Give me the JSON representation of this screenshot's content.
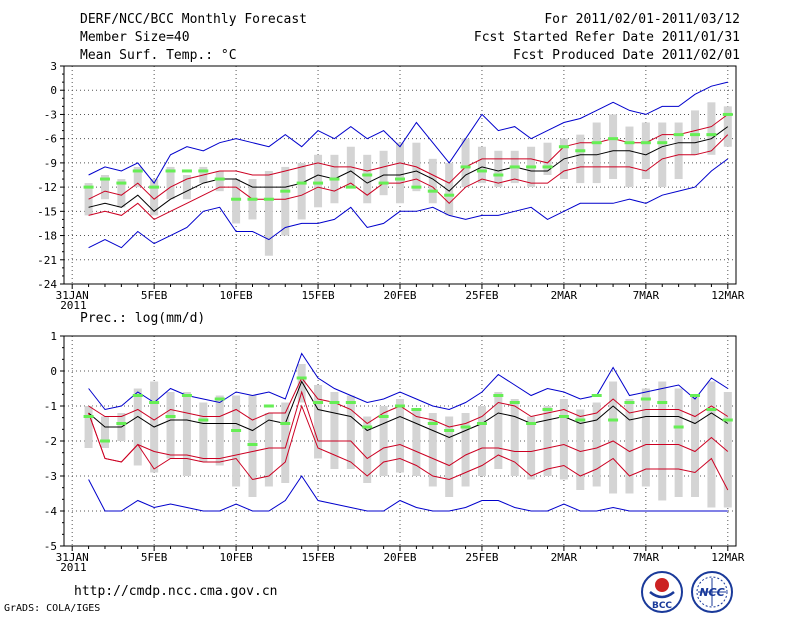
{
  "header": {
    "title": "DERF/NCC/BCC Monthly Forecast",
    "member_size": "Member Size=40",
    "variable": "Mean Surf. Temp.: °C",
    "period": "For 2011/02/01-2011/03/12",
    "start_date": "Fcst Started Refer Date 2011/01/31",
    "produced_date": "Fcst Produced Date 2011/02/01"
  },
  "footer": {
    "url": "http://cmdp.ncc.cma.gov.cn",
    "grads": "GrADS: COLA/IGES",
    "logo1_text": "BCC",
    "logo2_text": "NCC"
  },
  "colors": {
    "envelope": "#0000cc",
    "spread": "#cc0022",
    "mean": "#000000",
    "box": "#d4d4d4",
    "marker": "#66ee55",
    "grid": "#555555"
  },
  "chart_data": [
    {
      "type": "line",
      "panel": "temperature",
      "title": "Mean Surf. Temp.: °C",
      "x_labels": [
        "31JAN",
        "5FEB",
        "10FEB",
        "15FEB",
        "20FEB",
        "25FEB",
        "2MAR",
        "7MAR",
        "12MAR"
      ],
      "x_label_day": [
        0,
        5,
        10,
        15,
        20,
        25,
        30,
        35,
        40
      ],
      "x_year_label": "2011",
      "ylim": [
        -24,
        3
      ],
      "y_ticks": [
        "3",
        "0",
        "-3",
        "-6",
        "-9",
        "-12",
        "-15",
        "-18",
        "-21",
        "-24"
      ],
      "y_tick_values": [
        3,
        0,
        -3,
        -6,
        -9,
        -12,
        -15,
        -18,
        -21,
        -24
      ],
      "days": [
        1,
        2,
        3,
        4,
        5,
        6,
        7,
        8,
        9,
        10,
        11,
        12,
        13,
        14,
        15,
        16,
        17,
        18,
        19,
        20,
        21,
        22,
        23,
        24,
        25,
        26,
        27,
        28,
        29,
        30,
        31,
        32,
        33,
        34,
        35,
        36,
        37,
        38,
        39,
        40
      ],
      "series": [
        {
          "name": "max",
          "color": "#0000cc",
          "values": [
            -10.5,
            -9.5,
            -10,
            -9,
            -11.5,
            -8,
            -7,
            -7.5,
            -6.5,
            -6,
            -6.5,
            -7,
            -5.5,
            -7,
            -5,
            -6,
            -4.5,
            -6,
            -5,
            -7,
            -4,
            -6.5,
            -9,
            -6,
            -3,
            -5,
            -4.5,
            -6,
            -5,
            -4,
            -3.5,
            -2.5,
            -1.5,
            -2.5,
            -3,
            -2,
            -2,
            -0.5,
            0.5,
            1
          ]
        },
        {
          "name": "upper",
          "color": "#cc0022",
          "values": [
            -13.5,
            -12.5,
            -13,
            -11.5,
            -13.5,
            -12,
            -11,
            -10.5,
            -10,
            -10,
            -10.5,
            -10.5,
            -10,
            -9.5,
            -9,
            -9.5,
            -9.5,
            -10,
            -9.5,
            -9,
            -9.5,
            -10.5,
            -11.5,
            -9.5,
            -8.5,
            -8.5,
            -8.5,
            -8.5,
            -9,
            -7,
            -6.5,
            -6.5,
            -6,
            -6.5,
            -6.5,
            -5.5,
            -5.5,
            -5,
            -4.5,
            -3
          ]
        },
        {
          "name": "mean",
          "color": "#000000",
          "values": [
            -14.5,
            -14,
            -14.5,
            -13,
            -15,
            -13.5,
            -12.5,
            -11.5,
            -11,
            -11,
            -12,
            -12,
            -12,
            -11.5,
            -10.5,
            -11,
            -10,
            -11.5,
            -10.5,
            -10.5,
            -10,
            -11,
            -12.5,
            -10.5,
            -9.5,
            -10,
            -9.5,
            -10,
            -10,
            -8.5,
            -8,
            -8,
            -7.5,
            -7.5,
            -8,
            -7,
            -6.5,
            -6.5,
            -6,
            -4.5
          ]
        },
        {
          "name": "lower",
          "color": "#cc0022",
          "values": [
            -15.5,
            -15,
            -15.5,
            -14,
            -16,
            -15,
            -14,
            -13,
            -12,
            -12,
            -13.5,
            -13.5,
            -13.5,
            -13,
            -12,
            -12.5,
            -11.5,
            -13,
            -11.5,
            -11.5,
            -11,
            -12,
            -14,
            -12,
            -11,
            -11.5,
            -11,
            -11.5,
            -11.5,
            -10,
            -9.5,
            -9.5,
            -9.5,
            -9.5,
            -10,
            -8.5,
            -8,
            -8,
            -7.5,
            -5.5
          ]
        },
        {
          "name": "min",
          "color": "#0000cc",
          "values": [
            -19.5,
            -18.5,
            -19.5,
            -17.5,
            -19,
            -18,
            -17,
            -15,
            -14.5,
            -17.5,
            -17.5,
            -18.5,
            -17,
            -16.5,
            -16.5,
            -16,
            -14.5,
            -17,
            -16.5,
            -15,
            -15,
            -14.5,
            -15.5,
            -16,
            -15.5,
            -15.5,
            -15,
            -14.5,
            -16,
            -15,
            -14,
            -14,
            -14,
            -13.5,
            -14,
            -13,
            -12.5,
            -12,
            -10,
            -8.5
          ]
        }
      ],
      "boxes": [
        [
          -15.5,
          -11.5
        ],
        [
          -13.5,
          -10.5
        ],
        [
          -14.5,
          -11
        ],
        [
          -12,
          -9.5
        ],
        [
          -15.5,
          -11
        ],
        [
          -13.5,
          -9.5
        ],
        [
          -13.5,
          -10.5
        ],
        [
          -11.5,
          -9.5
        ],
        [
          -12.5,
          -10
        ],
        [
          -16.5,
          -11
        ],
        [
          -16,
          -11
        ],
        [
          -20.5,
          -10
        ],
        [
          -18,
          -9.5
        ],
        [
          -16,
          -9
        ],
        [
          -14.5,
          -8
        ],
        [
          -14,
          -8
        ],
        [
          -12,
          -7
        ],
        [
          -14,
          -8
        ],
        [
          -13,
          -7.5
        ],
        [
          -14,
          -6.5
        ],
        [
          -12.5,
          -6.5
        ],
        [
          -14,
          -8.5
        ],
        [
          -15.5,
          -9
        ],
        [
          -12,
          -6
        ],
        [
          -11.5,
          -7
        ],
        [
          -12,
          -7.5
        ],
        [
          -11.5,
          -7.5
        ],
        [
          -12,
          -7
        ],
        [
          -10.5,
          -6.5
        ],
        [
          -11,
          -6
        ],
        [
          -11.5,
          -5.5
        ],
        [
          -11.5,
          -4
        ],
        [
          -11,
          -3
        ],
        [
          -12,
          -4.5
        ],
        [
          -11,
          -4
        ],
        [
          -12,
          -4
        ],
        [
          -11,
          -4
        ],
        [
          -8,
          -2.5
        ],
        [
          -8,
          -1.5
        ],
        [
          -7,
          -2
        ]
      ],
      "markers": [
        -12,
        -11,
        -11.5,
        -10,
        -12,
        -10,
        -10,
        -10,
        -11,
        -13.5,
        -13.5,
        -13.5,
        -12.5,
        -11.5,
        -11.5,
        -11,
        -12,
        -10.5,
        -11.5,
        -11,
        -12,
        -12.5,
        -13,
        -9.5,
        -10,
        -10.5,
        -9.5,
        -9.5,
        -9.5,
        -7,
        -7.5,
        -6.5,
        -6,
        -6.5,
        -6.5,
        -6.5,
        -5.5,
        -5.5,
        -5.5,
        -3
      ]
    },
    {
      "type": "line",
      "panel": "precipitation",
      "title": "Prec.: log(mm/d)",
      "x_labels": [
        "31JAN",
        "5FEB",
        "10FEB",
        "15FEB",
        "20FEB",
        "25FEB",
        "2MAR",
        "7MAR",
        "12MAR"
      ],
      "x_label_day": [
        0,
        5,
        10,
        15,
        20,
        25,
        30,
        35,
        40
      ],
      "x_year_label": "2011",
      "ylim": [
        -5,
        1
      ],
      "y_ticks": [
        "1",
        "0",
        "-1",
        "-2",
        "-3",
        "-4",
        "-5"
      ],
      "y_tick_values": [
        1,
        0,
        -1,
        -2,
        -3,
        -4,
        -5
      ],
      "days": [
        1,
        2,
        3,
        4,
        5,
        6,
        7,
        8,
        9,
        10,
        11,
        12,
        13,
        14,
        15,
        16,
        17,
        18,
        19,
        20,
        21,
        22,
        23,
        24,
        25,
        26,
        27,
        28,
        29,
        30,
        31,
        32,
        33,
        34,
        35,
        36,
        37,
        38,
        39,
        40
      ],
      "series": [
        {
          "name": "max",
          "color": "#0000cc",
          "values": [
            -0.5,
            -1.1,
            -1,
            -0.6,
            -0.9,
            -0.5,
            -0.7,
            -0.8,
            -0.9,
            -0.6,
            -0.7,
            -0.6,
            -0.8,
            0.5,
            -0.2,
            -0.5,
            -0.7,
            -0.9,
            -0.8,
            -0.6,
            -0.8,
            -1,
            -1.1,
            -0.9,
            -0.6,
            -0.1,
            -0.4,
            -0.7,
            -0.5,
            -0.6,
            -0.8,
            -0.7,
            0.1,
            -0.7,
            -0.6,
            -0.5,
            -0.4,
            -0.8,
            -0.2,
            -0.5
          ]
        },
        {
          "name": "upper",
          "color": "#cc0022",
          "values": [
            -1,
            -1.3,
            -1.3,
            -1.1,
            -1.4,
            -1.1,
            -1.2,
            -1.3,
            -1.3,
            -1.1,
            -1.4,
            -1.2,
            -1.2,
            -0.2,
            -0.8,
            -0.9,
            -1.1,
            -1.5,
            -1.2,
            -1,
            -1.3,
            -1.4,
            -1.6,
            -1.5,
            -1.3,
            -0.9,
            -1,
            -1.3,
            -1.2,
            -1.1,
            -1.3,
            -1.2,
            -0.8,
            -1.2,
            -1.1,
            -1.1,
            -1.1,
            -1.3,
            -1,
            -1.3
          ]
        },
        {
          "name": "mean",
          "color": "#000000",
          "values": [
            -1.2,
            -1.6,
            -1.6,
            -1.3,
            -1.6,
            -1.4,
            -1.4,
            -1.5,
            -1.5,
            -1.5,
            -1.7,
            -1.4,
            -1.5,
            -0.3,
            -1.1,
            -1.2,
            -1.3,
            -1.7,
            -1.5,
            -1.3,
            -1.5,
            -1.7,
            -1.9,
            -1.7,
            -1.5,
            -1.2,
            -1.3,
            -1.5,
            -1.4,
            -1.3,
            -1.5,
            -1.4,
            -1,
            -1.4,
            -1.3,
            -1.3,
            -1.3,
            -1.5,
            -1.2,
            -1.5
          ]
        },
        {
          "name": "lower",
          "color": "#cc0022",
          "values": [
            -1.2,
            -2.5,
            -2.6,
            -2.1,
            -2.3,
            -2.4,
            -2.4,
            -2.5,
            -2.5,
            -2.4,
            -2.3,
            -2.2,
            -2.2,
            -0.6,
            -2,
            -2,
            -2,
            -2.5,
            -2.2,
            -2.1,
            -2.3,
            -2.5,
            -2.7,
            -2.4,
            -2.2,
            -2.2,
            -2.3,
            -2.3,
            -2.2,
            -2.1,
            -2.3,
            -2.2,
            -2,
            -2.3,
            -2.1,
            -2.1,
            -2.1,
            -2.3,
            -1.9,
            -2.3
          ]
        },
        {
          "name": "lower2",
          "color": "#cc0022",
          "values": [
            -1.2,
            -2.5,
            -2.6,
            -2.1,
            -2.8,
            -2.5,
            -2.5,
            -2.6,
            -2.6,
            -2.5,
            -3.1,
            -3,
            -2.6,
            -1,
            -2.2,
            -2.4,
            -2.6,
            -3,
            -2.6,
            -2.5,
            -2.7,
            -3,
            -3.1,
            -2.9,
            -2.7,
            -2.4,
            -2.6,
            -3,
            -2.8,
            -2.7,
            -3,
            -2.8,
            -2.5,
            -3,
            -2.8,
            -2.8,
            -2.8,
            -2.9,
            -2.5,
            -3.4
          ]
        },
        {
          "name": "min",
          "color": "#0000cc",
          "values": [
            -3.1,
            -4,
            -4,
            -3.7,
            -3.9,
            -3.8,
            -3.9,
            -4,
            -4,
            -3.8,
            -4,
            -4,
            -3.7,
            -3,
            -3.7,
            -3.8,
            -3.9,
            -4,
            -4,
            -3.7,
            -3.9,
            -4,
            -4,
            -3.9,
            -3.7,
            -3.7,
            -3.9,
            -4,
            -4,
            -3.8,
            -4,
            -4,
            -3.9,
            -4,
            -4,
            -4,
            -4,
            -4,
            -4,
            -4
          ]
        }
      ],
      "boxes": [
        [
          -2.2,
          -1
        ],
        [
          -2.2,
          -1.3
        ],
        [
          -2,
          -1.2
        ],
        [
          -2.7,
          -0.5
        ],
        [
          -2.9,
          -0.3
        ],
        [
          -2.5,
          -0.6
        ],
        [
          -3,
          -0.6
        ],
        [
          -2.6,
          -0.9
        ],
        [
          -2.7,
          -0.7
        ],
        [
          -3.3,
          -0.7
        ],
        [
          -3.6,
          -0.7
        ],
        [
          -3.3,
          -1.2
        ],
        [
          -3.2,
          -0.9
        ],
        [
          -0.9,
          0.2
        ],
        [
          -2.5,
          -0.4
        ],
        [
          -2.8,
          -0.6
        ],
        [
          -2.8,
          -0.7
        ],
        [
          -3.2,
          -1.3
        ],
        [
          -3,
          -1
        ],
        [
          -2.9,
          -0.8
        ],
        [
          -3,
          -1.1
        ],
        [
          -3.3,
          -1.2
        ],
        [
          -3.6,
          -1.3
        ],
        [
          -3.3,
          -1.2
        ],
        [
          -3,
          -1
        ],
        [
          -2.8,
          -0.6
        ],
        [
          -3,
          -0.8
        ],
        [
          -3.1,
          -1.3
        ],
        [
          -3,
          -1
        ],
        [
          -3.1,
          -0.8
        ],
        [
          -3.4,
          -1.1
        ],
        [
          -3.3,
          -0.9
        ],
        [
          -3.5,
          -0.3
        ],
        [
          -3.5,
          -0.8
        ],
        [
          -3.3,
          -0.5
        ],
        [
          -3.7,
          -0.3
        ],
        [
          -3.6,
          -0.5
        ],
        [
          -3.6,
          -0.7
        ],
        [
          -3.9,
          -0.3
        ],
        [
          -3.9,
          -0.6
        ]
      ],
      "markers": [
        -1.3,
        -2,
        -1.5,
        -0.7,
        -0.9,
        -1.3,
        -0.7,
        -1.4,
        -0.8,
        -1.7,
        -2.1,
        -1,
        -1.5,
        -0.2,
        -0.9,
        -0.9,
        -0.9,
        -1.6,
        -1.3,
        -1,
        -1.1,
        -1.5,
        -1.7,
        -1.6,
        -1.5,
        -0.7,
        -0.9,
        -1.5,
        -1.1,
        -1.3,
        -1.4,
        -0.7,
        -1.4,
        -0.9,
        -0.8,
        -0.9,
        -1.6,
        -0.7,
        -1.1,
        -1.4
      ]
    }
  ]
}
